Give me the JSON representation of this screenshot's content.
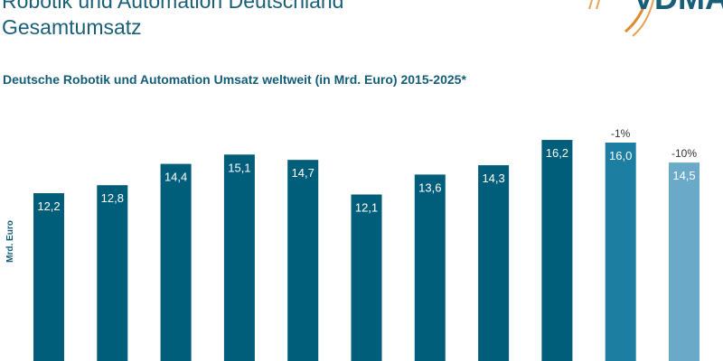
{
  "header": {
    "title_line1": "Robotik und Automation Deutschland",
    "title_line2": "Gesamtumsatz",
    "logo_text": "VDMA"
  },
  "chart_data": {
    "type": "bar",
    "title": "Deutsche Robotik und Automation Umsatz weltweit (in Mrd. Euro) 2015-2025*",
    "ylabel": "Mrd. Euro",
    "xlabel": "",
    "values": [
      12.2,
      12.8,
      14.4,
      15.1,
      14.7,
      12.1,
      13.6,
      14.3,
      16.2,
      16.0,
      14.5
    ],
    "data_labels": [
      "12,2",
      "12,8",
      "14,4",
      "15,1",
      "14,7",
      "12,1",
      "13,6",
      "14,3",
      "16,2",
      "16,0",
      "14,5"
    ],
    "annotations": [
      "",
      "",
      "",
      "",
      "",
      "",
      "",
      "",
      "",
      "-1%",
      "-10%"
    ],
    "bar_colors": [
      "#005e7b",
      "#005e7b",
      "#005e7b",
      "#005e7b",
      "#005e7b",
      "#005e7b",
      "#005e7b",
      "#005e7b",
      "#005e7b",
      "#1c7ea1",
      "#6aaac8"
    ],
    "grid": false
  }
}
